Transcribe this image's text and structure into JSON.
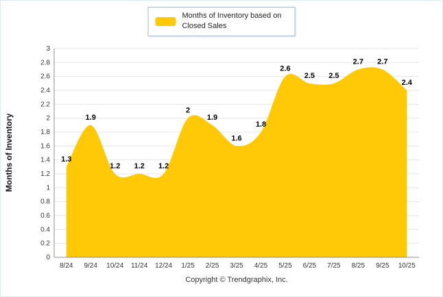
{
  "chart_data": {
    "type": "area",
    "categories": [
      "8/24",
      "9/24",
      "10/24",
      "11/24",
      "12/24",
      "1/25",
      "2/25",
      "3/25",
      "4/25",
      "5/25",
      "6/25",
      "7/25",
      "8/25",
      "9/25",
      "10/25"
    ],
    "values": [
      1.3,
      1.9,
      1.2,
      1.2,
      1.2,
      2,
      1.9,
      1.6,
      1.8,
      2.6,
      2.5,
      2.5,
      2.7,
      2.7,
      2.4
    ],
    "title": "",
    "legend": "Months of Inventory based on Closed Sales",
    "xlabel": "",
    "ylabel": "Months of Inventory",
    "ylim": [
      0,
      3
    ],
    "ytick_step": 0.2,
    "area_color": "#FFC907",
    "grid": true,
    "legend_position": "top-center"
  },
  "footer": {
    "text": "Copyright © Trendgraphix, Inc."
  }
}
